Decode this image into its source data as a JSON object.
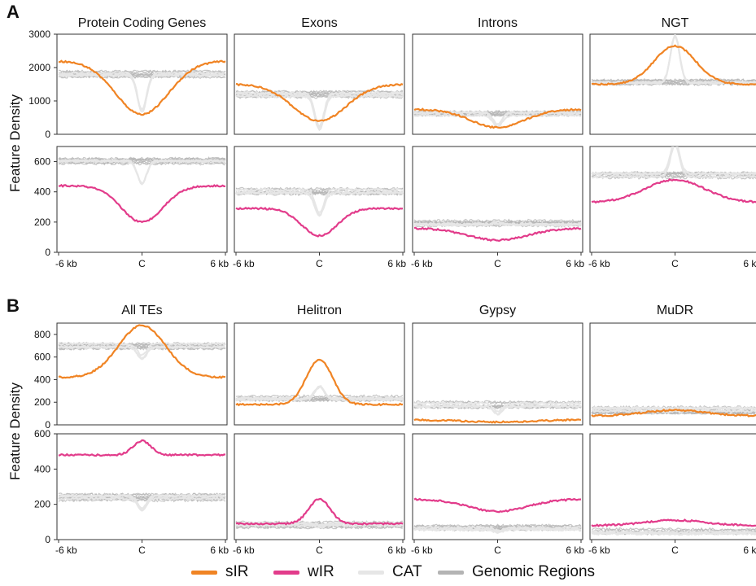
{
  "figure": {
    "section_labels": [
      "A",
      "B"
    ],
    "y_axis_label": "Feature Density",
    "x_tick_labels": [
      "-6 kb",
      "C",
      "6 kb"
    ]
  },
  "legend": {
    "items": [
      {
        "label": "sIR",
        "color": "#F08424"
      },
      {
        "label": "wIR",
        "color": "#E23C8B"
      },
      {
        "label": "CAT",
        "color": "#E6E6E6"
      },
      {
        "label": "Genomic Regions",
        "color": "#B4B4B4"
      }
    ]
  },
  "chart_data": [
    {
      "section": "A",
      "panels": [
        {
          "title": "Protein Coding Genes",
          "type": "line",
          "rows": [
            {
              "series": "sIR",
              "ylim": [
                0,
                3000
              ],
              "yticks": [
                0,
                1000,
                2000,
                3000
              ],
              "edge": 2200,
              "center": 600,
              "shape": "valley",
              "spread": 0.45,
              "bg": 1800,
              "cat_center": 700
            },
            {
              "series": "wIR",
              "ylim": [
                0,
                700
              ],
              "yticks": [
                0,
                200,
                400,
                600
              ],
              "edge": 440,
              "center": 200,
              "shape": "valley",
              "spread": 0.35,
              "bg": 600,
              "cat_center": 450
            }
          ]
        },
        {
          "title": "Exons",
          "type": "line",
          "rows": [
            {
              "series": "sIR",
              "ylim": [
                0,
                3000
              ],
              "yticks": [
                0,
                1000,
                2000,
                3000
              ],
              "edge": 1500,
              "center": 400,
              "shape": "valley",
              "spread": 0.45,
              "bg": 1200,
              "cat_center": 200
            },
            {
              "series": "wIR",
              "ylim": [
                0,
                700
              ],
              "yticks": [
                0,
                200,
                400,
                600
              ],
              "edge": 290,
              "center": 110,
              "shape": "valley",
              "spread": 0.3,
              "bg": 400,
              "cat_center": 250
            }
          ]
        },
        {
          "title": "Introns",
          "type": "line",
          "rows": [
            {
              "series": "sIR",
              "ylim": [
                0,
                3000
              ],
              "yticks": [
                0,
                1000,
                2000,
                3000
              ],
              "edge": 750,
              "center": 200,
              "shape": "valley",
              "spread": 0.45,
              "bg": 600,
              "cat_center": 250
            },
            {
              "series": "wIR",
              "ylim": [
                0,
                700
              ],
              "yticks": [
                0,
                200,
                400,
                600
              ],
              "edge": 160,
              "center": 80,
              "shape": "valley",
              "spread": 0.5,
              "bg": 190,
              "cat_center": 200
            }
          ]
        },
        {
          "title": "NGT",
          "type": "line",
          "rows": [
            {
              "series": "sIR",
              "ylim": [
                0,
                3000
              ],
              "yticks": [
                0,
                1000,
                2000,
                3000
              ],
              "edge": 1500,
              "center": 2650,
              "shape": "peak",
              "spread": 0.35,
              "bg": 1550,
              "cat_center": 2950
            },
            {
              "series": "wIR",
              "ylim": [
                0,
                700
              ],
              "yticks": [
                0,
                200,
                400,
                600
              ],
              "edge": 330,
              "center": 480,
              "shape": "peak",
              "spread": 0.5,
              "bg": 510,
              "cat_center": 720
            }
          ]
        }
      ]
    },
    {
      "section": "B",
      "panels": [
        {
          "title": "All TEs",
          "type": "line",
          "rows": [
            {
              "series": "sIR",
              "ylim": [
                0,
                900
              ],
              "yticks": [
                0,
                200,
                400,
                600,
                800
              ],
              "edge": 420,
              "center": 880,
              "shape": "peak",
              "spread": 0.4,
              "bg": 700,
              "cat_center": 600
            },
            {
              "series": "wIR",
              "ylim": [
                0,
                600
              ],
              "yticks": [
                0,
                200,
                400,
                600
              ],
              "edge": 480,
              "center": 560,
              "shape": "peak",
              "spread": 0.15,
              "bg": 240,
              "cat_center": 170
            }
          ]
        },
        {
          "title": "Helitron",
          "type": "line",
          "rows": [
            {
              "series": "sIR",
              "ylim": [
                0,
                900
              ],
              "yticks": [
                0,
                200,
                400,
                600,
                800
              ],
              "edge": 180,
              "center": 580,
              "shape": "peak",
              "spread": 0.22,
              "bg": 240,
              "cat_center": 350
            },
            {
              "series": "wIR",
              "ylim": [
                0,
                600
              ],
              "yticks": [
                0,
                200,
                400,
                600
              ],
              "edge": 90,
              "center": 230,
              "shape": "peak",
              "spread": 0.18,
              "bg": 85,
              "cat_center": 75
            }
          ]
        },
        {
          "title": "Gypsy",
          "type": "line",
          "rows": [
            {
              "series": "sIR",
              "ylim": [
                0,
                900
              ],
              "yticks": [
                0,
                200,
                400,
                600,
                800
              ],
              "edge": 45,
              "center": 25,
              "shape": "valley",
              "spread": 0.6,
              "bg": 180,
              "cat_center": 110
            },
            {
              "series": "wIR",
              "ylim": [
                0,
                600
              ],
              "yticks": [
                0,
                200,
                400,
                600
              ],
              "edge": 230,
              "center": 160,
              "shape": "valley",
              "spread": 0.5,
              "bg": 65,
              "cat_center": 50
            }
          ]
        },
        {
          "title": "MuDR",
          "type": "line",
          "rows": [
            {
              "series": "sIR",
              "ylim": [
                0,
                900
              ],
              "yticks": [
                0,
                200,
                400,
                600,
                800
              ],
              "edge": 80,
              "center": 130,
              "shape": "peak",
              "spread": 0.5,
              "bg": 130,
              "cat_center": 130
            },
            {
              "series": "wIR",
              "ylim": [
                0,
                600
              ],
              "yticks": [
                0,
                200,
                400,
                600
              ],
              "edge": 80,
              "center": 110,
              "shape": "peak",
              "spread": 0.5,
              "bg": 45,
              "cat_center": 40
            }
          ]
        }
      ]
    }
  ]
}
